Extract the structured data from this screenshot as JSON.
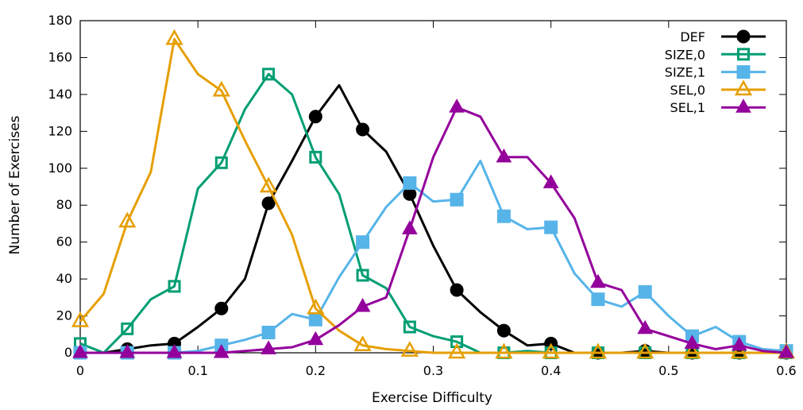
{
  "chart_data": {
    "type": "line",
    "title": "",
    "xlabel": "Exercise Difficulty",
    "ylabel": "Number of Exercises",
    "xlim": [
      0,
      0.6
    ],
    "ylim": [
      0,
      180
    ],
    "xticks": [
      0,
      0.1,
      0.2,
      0.3,
      0.4,
      0.5,
      0.6
    ],
    "xtick_labels": [
      "0",
      "0.1",
      "0.2",
      "0.3",
      "0.4",
      "0.5",
      "0.6"
    ],
    "yticks": [
      0,
      20,
      40,
      60,
      80,
      100,
      120,
      140,
      160,
      180
    ],
    "ytick_labels": [
      "0",
      "20",
      "40",
      "60",
      "80",
      "100",
      "120",
      "140",
      "160",
      "180"
    ],
    "grid": false,
    "legend_position": "top-right",
    "marker_x": [
      0,
      0.04,
      0.08,
      0.12,
      0.16,
      0.2,
      0.24,
      0.28,
      0.32,
      0.36,
      0.4,
      0.44,
      0.48,
      0.52,
      0.56,
      0.6
    ],
    "series": [
      {
        "name": "DEF",
        "color": "#000000",
        "marker": "filled-circle",
        "x": [
          0,
          0.02,
          0.04,
          0.06,
          0.08,
          0.1,
          0.12,
          0.14,
          0.16,
          0.18,
          0.2,
          0.22,
          0.24,
          0.26,
          0.28,
          0.3,
          0.32,
          0.34,
          0.36,
          0.38,
          0.4,
          0.42,
          0.44,
          0.46,
          0.48,
          0.5,
          0.52,
          0.54,
          0.56,
          0.58,
          0.6
        ],
        "y": [
          0,
          0,
          2,
          4,
          5,
          14,
          24,
          40,
          81,
          104,
          128,
          145,
          121,
          109,
          86,
          58,
          34,
          22,
          12,
          4,
          5,
          0,
          0,
          0,
          1,
          0,
          0,
          0,
          0,
          0,
          0
        ]
      },
      {
        "name": "SIZE,0",
        "color": "#009e73",
        "marker": "open-square",
        "x": [
          0,
          0.02,
          0.04,
          0.06,
          0.08,
          0.1,
          0.12,
          0.14,
          0.16,
          0.18,
          0.2,
          0.22,
          0.24,
          0.26,
          0.28,
          0.3,
          0.32,
          0.34,
          0.36,
          0.38,
          0.4,
          0.42,
          0.44,
          0.46,
          0.48,
          0.5,
          0.52,
          0.54,
          0.56,
          0.58,
          0.6
        ],
        "y": [
          5,
          0,
          13,
          29,
          36,
          89,
          103,
          132,
          151,
          140,
          106,
          86,
          42,
          35,
          14,
          9,
          6,
          0,
          0,
          1,
          0,
          0,
          0,
          0,
          0,
          0,
          0,
          0,
          0,
          0,
          0
        ]
      },
      {
        "name": "SIZE,1",
        "color": "#56b4e9",
        "marker": "filled-square",
        "x": [
          0,
          0.02,
          0.04,
          0.06,
          0.08,
          0.1,
          0.12,
          0.14,
          0.16,
          0.18,
          0.2,
          0.22,
          0.24,
          0.26,
          0.28,
          0.3,
          0.32,
          0.34,
          0.36,
          0.38,
          0.4,
          0.42,
          0.44,
          0.46,
          0.48,
          0.5,
          0.52,
          0.54,
          0.56,
          0.58,
          0.6
        ],
        "y": [
          0,
          0,
          0,
          0,
          0,
          1,
          4,
          7,
          11,
          21,
          18,
          41,
          60,
          79,
          92,
          82,
          83,
          104,
          74,
          67,
          68,
          43,
          29,
          25,
          33,
          20,
          9,
          14,
          6,
          2,
          1
        ]
      },
      {
        "name": "SEL,0",
        "color": "#e69f00",
        "marker": "open-triangle",
        "x": [
          0,
          0.02,
          0.04,
          0.06,
          0.08,
          0.1,
          0.12,
          0.14,
          0.16,
          0.18,
          0.2,
          0.22,
          0.24,
          0.26,
          0.28,
          0.3,
          0.32,
          0.34,
          0.36,
          0.38,
          0.4,
          0.42,
          0.44,
          0.46,
          0.48,
          0.5,
          0.52,
          0.54,
          0.56,
          0.58,
          0.6
        ],
        "y": [
          17,
          32,
          71,
          98,
          170,
          151,
          142,
          115,
          90,
          64,
          24,
          12,
          4,
          2,
          1,
          0,
          0,
          0,
          0,
          0,
          0,
          0,
          0,
          0,
          0,
          0,
          0,
          0,
          0,
          0,
          0
        ]
      },
      {
        "name": "SEL,1",
        "color": "#94009b",
        "marker": "filled-triangle",
        "x": [
          0,
          0.02,
          0.04,
          0.06,
          0.08,
          0.1,
          0.12,
          0.14,
          0.16,
          0.18,
          0.2,
          0.22,
          0.24,
          0.26,
          0.28,
          0.3,
          0.32,
          0.34,
          0.36,
          0.38,
          0.4,
          0.42,
          0.44,
          0.46,
          0.48,
          0.5,
          0.52,
          0.54,
          0.56,
          0.58,
          0.6
        ],
        "y": [
          0,
          0,
          0,
          0,
          0,
          0,
          0,
          1,
          2,
          3,
          7,
          15,
          25,
          30,
          67,
          106,
          133,
          128,
          106,
          106,
          92,
          73,
          38,
          34,
          13,
          9,
          5,
          2,
          4,
          1,
          0
        ]
      }
    ]
  }
}
